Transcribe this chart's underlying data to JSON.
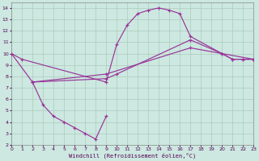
{
  "xlabel": "Windchill (Refroidissement éolien,°C)",
  "bg_color": "#cce8e0",
  "line_color": "#993399",
  "grid_color": "#aaccbb",
  "xlim": [
    0,
    23
  ],
  "ylim": [
    2,
    14.5
  ],
  "xticks": [
    0,
    1,
    2,
    3,
    4,
    5,
    6,
    7,
    8,
    9,
    10,
    11,
    12,
    13,
    14,
    15,
    16,
    17,
    18,
    19,
    20,
    21,
    22,
    23
  ],
  "yticks": [
    2,
    3,
    4,
    5,
    6,
    7,
    8,
    9,
    10,
    11,
    12,
    13,
    14
  ],
  "lines": [
    {
      "x": [
        0,
        1,
        9,
        10,
        11,
        12,
        13,
        14,
        15,
        16,
        17,
        20,
        21,
        22,
        23
      ],
      "y": [
        10,
        9.5,
        7.5,
        10.8,
        12.5,
        13.5,
        13.8,
        14.0,
        13.8,
        13.5,
        11.5,
        10.0,
        9.5,
        9.5,
        9.5
      ]
    },
    {
      "x": [
        0,
        2,
        9,
        10,
        17,
        20,
        21,
        22,
        23
      ],
      "y": [
        10,
        7.5,
        7.8,
        8.2,
        11.2,
        10.0,
        9.5,
        9.5,
        9.5
      ]
    },
    {
      "x": [
        2,
        9,
        17,
        23
      ],
      "y": [
        7.5,
        8.2,
        10.5,
        9.5
      ]
    },
    {
      "x": [
        2,
        3,
        4,
        5,
        6,
        7,
        8,
        9
      ],
      "y": [
        7.5,
        5.5,
        4.5,
        4.0,
        3.5,
        3.0,
        2.5,
        4.5
      ]
    }
  ]
}
